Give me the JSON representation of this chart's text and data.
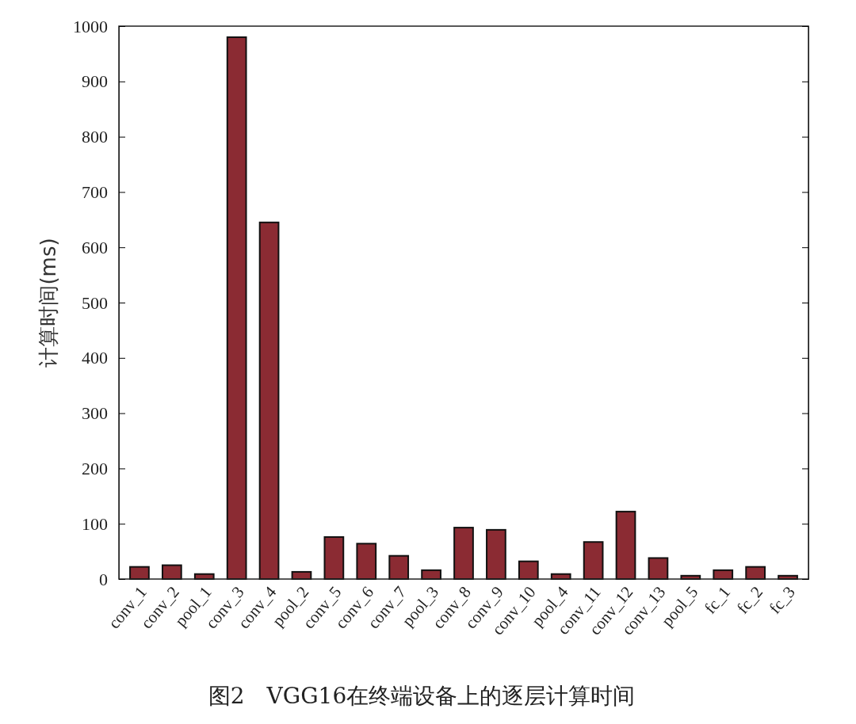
{
  "chart_data": {
    "type": "bar",
    "title": "图2　VGG16在终端设备上的逐层计算时间",
    "ylabel": "计算时间(ms)",
    "categories": [
      "conv_1",
      "conv_2",
      "pool_1",
      "conv_3",
      "conv_4",
      "pool_2",
      "conv_5",
      "conv_6",
      "conv_7",
      "pool_3",
      "conv_8",
      "conv_9",
      "conv_10",
      "pool_4",
      "conv_11",
      "conv_12",
      "conv_13",
      "pool_5",
      "fc_1",
      "fc_2",
      "fc_3"
    ],
    "values": [
      22,
      25,
      9,
      980,
      645,
      13,
      76,
      64,
      42,
      16,
      93,
      89,
      32,
      9,
      67,
      122,
      38,
      6,
      16,
      22,
      6
    ],
    "color": "#8b2b33",
    "ylim": [
      0,
      1000
    ],
    "yticks": [
      0,
      100,
      200,
      300,
      400,
      500,
      600,
      700,
      800,
      900,
      1000
    ]
  }
}
